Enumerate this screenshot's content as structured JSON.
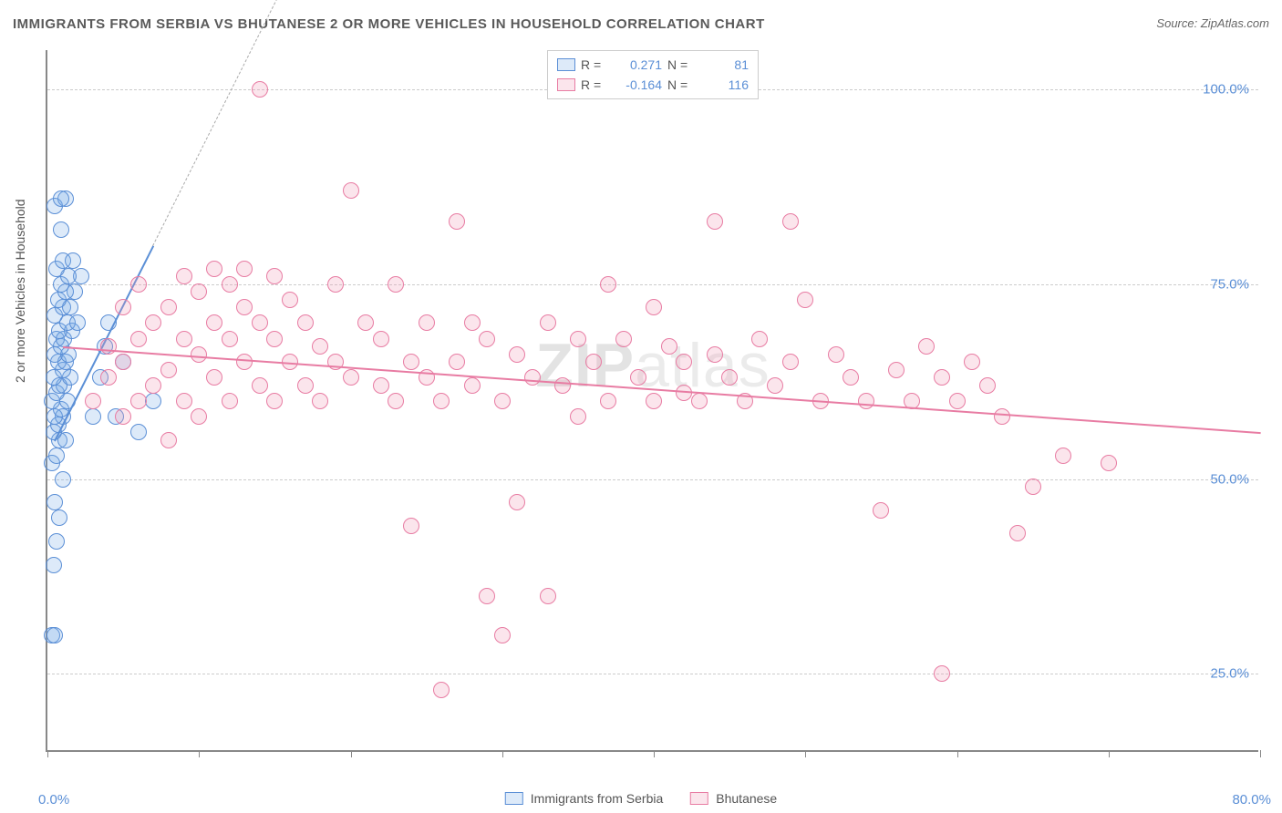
{
  "chart": {
    "type": "scatter",
    "title": "IMMIGRANTS FROM SERBIA VS BHUTANESE 2 OR MORE VEHICLES IN HOUSEHOLD CORRELATION CHART",
    "source_label": "Source:",
    "source_name": "ZipAtlas.com",
    "ylabel": "2 or more Vehicles in Household",
    "watermark_bold": "ZIP",
    "watermark_rest": "atlas",
    "xlim": [
      0,
      80
    ],
    "ylim": [
      15,
      105
    ],
    "x_ticks": [
      0,
      10,
      20,
      30,
      40,
      50,
      60,
      70,
      80
    ],
    "x_tick_labels": {
      "0": "0.0%",
      "80": "80.0%"
    },
    "y_gridlines": [
      25,
      50,
      75,
      100
    ],
    "y_tick_labels": {
      "25": "25.0%",
      "50": "50.0%",
      "75": "75.0%",
      "100": "100.0%"
    },
    "grid_color": "#cccccc",
    "axis_color": "#888888",
    "background_color": "#ffffff",
    "tick_label_color": "#5b8fd6",
    "point_radius": 9,
    "series": [
      {
        "name": "Immigrants from Serbia",
        "color_stroke": "#5b8fd6",
        "color_fill": "rgba(120,170,230,0.25)",
        "R": "0.271",
        "N": "81",
        "trend": {
          "x1": 0.5,
          "y1": 55,
          "x2": 7,
          "y2": 80,
          "dashed_extend": true,
          "dash_x2": 22,
          "dash_y2": 138
        },
        "points": [
          [
            0.3,
            30
          ],
          [
            0.5,
            30
          ],
          [
            0.4,
            39
          ],
          [
            0.6,
            42
          ],
          [
            0.8,
            45
          ],
          [
            0.5,
            47
          ],
          [
            1.0,
            50
          ],
          [
            0.3,
            52
          ],
          [
            0.6,
            53
          ],
          [
            0.8,
            55
          ],
          [
            1.2,
            55
          ],
          [
            0.4,
            56
          ],
          [
            0.7,
            57
          ],
          [
            1.0,
            58
          ],
          [
            0.5,
            58
          ],
          [
            0.9,
            59
          ],
          [
            0.3,
            60
          ],
          [
            1.3,
            60
          ],
          [
            0.6,
            61
          ],
          [
            1.1,
            62
          ],
          [
            0.8,
            62
          ],
          [
            1.5,
            63
          ],
          [
            0.4,
            63
          ],
          [
            1.0,
            64
          ],
          [
            0.7,
            65
          ],
          [
            1.2,
            65
          ],
          [
            0.5,
            66
          ],
          [
            1.4,
            66
          ],
          [
            0.9,
            67
          ],
          [
            0.6,
            68
          ],
          [
            1.1,
            68
          ],
          [
            1.6,
            69
          ],
          [
            0.8,
            69
          ],
          [
            1.3,
            70
          ],
          [
            2.0,
            70
          ],
          [
            0.5,
            71
          ],
          [
            1.0,
            72
          ],
          [
            1.5,
            72
          ],
          [
            0.7,
            73
          ],
          [
            1.8,
            74
          ],
          [
            1.2,
            74
          ],
          [
            0.9,
            75
          ],
          [
            2.2,
            76
          ],
          [
            1.4,
            76
          ],
          [
            0.6,
            77
          ],
          [
            1.0,
            78
          ],
          [
            1.7,
            78
          ],
          [
            0.9,
            82
          ],
          [
            0.5,
            85
          ],
          [
            1.2,
            86
          ],
          [
            0.9,
            86
          ],
          [
            3.0,
            58
          ],
          [
            3.5,
            63
          ],
          [
            3.8,
            67
          ],
          [
            4.0,
            70
          ],
          [
            4.5,
            58
          ],
          [
            5.0,
            65
          ],
          [
            6.0,
            56
          ],
          [
            7.0,
            60
          ]
        ]
      },
      {
        "name": "Bhutanese",
        "color_stroke": "#e87ca3",
        "color_fill": "rgba(240,150,180,0.25)",
        "R": "-0.164",
        "N": "116",
        "trend": {
          "x1": 1,
          "y1": 67,
          "x2": 80,
          "y2": 56
        },
        "points": [
          [
            3,
            60
          ],
          [
            4,
            63
          ],
          [
            4,
            67
          ],
          [
            5,
            58
          ],
          [
            5,
            65
          ],
          [
            5,
            72
          ],
          [
            6,
            60
          ],
          [
            6,
            68
          ],
          [
            6,
            75
          ],
          [
            7,
            62
          ],
          [
            7,
            70
          ],
          [
            8,
            55
          ],
          [
            8,
            64
          ],
          [
            8,
            72
          ],
          [
            9,
            60
          ],
          [
            9,
            68
          ],
          [
            9,
            76
          ],
          [
            10,
            58
          ],
          [
            10,
            66
          ],
          [
            10,
            74
          ],
          [
            11,
            63
          ],
          [
            11,
            70
          ],
          [
            11,
            77
          ],
          [
            12,
            60
          ],
          [
            12,
            68
          ],
          [
            12,
            75
          ],
          [
            13,
            65
          ],
          [
            13,
            72
          ],
          [
            13,
            77
          ],
          [
            14,
            62
          ],
          [
            14,
            70
          ],
          [
            14,
            100
          ],
          [
            15,
            60
          ],
          [
            15,
            68
          ],
          [
            15,
            76
          ],
          [
            16,
            65
          ],
          [
            16,
            73
          ],
          [
            17,
            62
          ],
          [
            17,
            70
          ],
          [
            18,
            60
          ],
          [
            18,
            67
          ],
          [
            19,
            65
          ],
          [
            19,
            75
          ],
          [
            20,
            63
          ],
          [
            20,
            87
          ],
          [
            21,
            70
          ],
          [
            22,
            62
          ],
          [
            22,
            68
          ],
          [
            23,
            60
          ],
          [
            23,
            75
          ],
          [
            24,
            65
          ],
          [
            24,
            44
          ],
          [
            25,
            63
          ],
          [
            25,
            70
          ],
          [
            26,
            60
          ],
          [
            26,
            23
          ],
          [
            27,
            65
          ],
          [
            27,
            83
          ],
          [
            28,
            62
          ],
          [
            28,
            70
          ],
          [
            29,
            68
          ],
          [
            29,
            35
          ],
          [
            30,
            60
          ],
          [
            30,
            30
          ],
          [
            31,
            66
          ],
          [
            31,
            47
          ],
          [
            32,
            63
          ],
          [
            33,
            70
          ],
          [
            33,
            35
          ],
          [
            34,
            62
          ],
          [
            35,
            68
          ],
          [
            35,
            58
          ],
          [
            36,
            65
          ],
          [
            37,
            60
          ],
          [
            37,
            75
          ],
          [
            38,
            68
          ],
          [
            39,
            63
          ],
          [
            40,
            60
          ],
          [
            40,
            72
          ],
          [
            41,
            67
          ],
          [
            42,
            65
          ],
          [
            42,
            61
          ],
          [
            43,
            60
          ],
          [
            44,
            83
          ],
          [
            44,
            66
          ],
          [
            45,
            63
          ],
          [
            46,
            60
          ],
          [
            47,
            68
          ],
          [
            48,
            62
          ],
          [
            49,
            65
          ],
          [
            49,
            83
          ],
          [
            50,
            73
          ],
          [
            51,
            60
          ],
          [
            52,
            66
          ],
          [
            53,
            63
          ],
          [
            54,
            60
          ],
          [
            55,
            46
          ],
          [
            56,
            64
          ],
          [
            57,
            60
          ],
          [
            58,
            67
          ],
          [
            59,
            25
          ],
          [
            59,
            63
          ],
          [
            60,
            60
          ],
          [
            61,
            65
          ],
          [
            62,
            62
          ],
          [
            63,
            58
          ],
          [
            64,
            43
          ],
          [
            65,
            49
          ],
          [
            67,
            53
          ],
          [
            70,
            52
          ]
        ]
      }
    ],
    "legend_labels": {
      "R": "R =",
      "N": "N ="
    }
  }
}
